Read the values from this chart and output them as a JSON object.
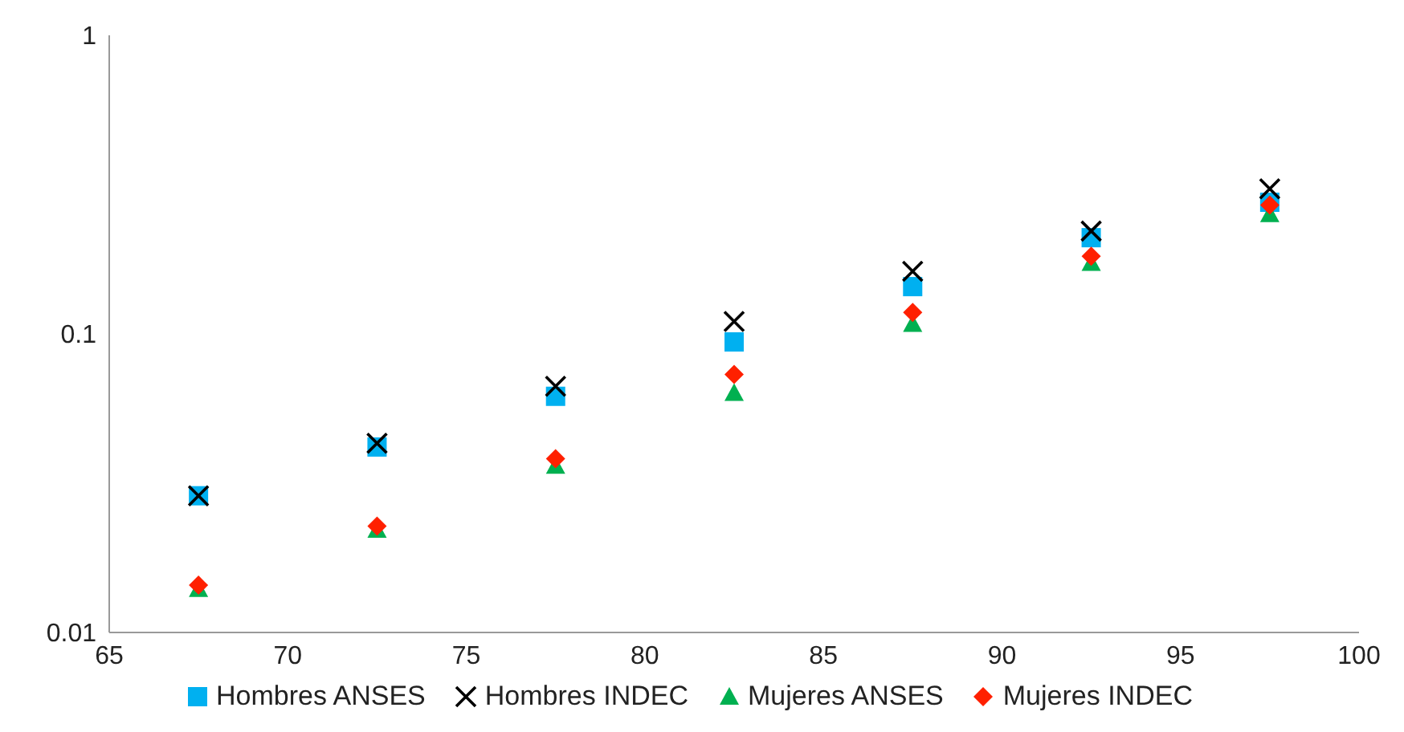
{
  "chart_data": {
    "type": "scatter",
    "x": [
      67.5,
      72.5,
      77.5,
      82.5,
      87.5,
      92.5,
      97.5
    ],
    "series": [
      {
        "name": "Hombres ANSES",
        "color": "#00b0f0",
        "marker": "square",
        "values": [
          0.0287,
          0.0418,
          0.0618,
          0.094,
          0.144,
          0.21,
          0.276
        ]
      },
      {
        "name": "Hombres INDEC",
        "color": "#000000",
        "marker": "cross",
        "values": [
          0.0287,
          0.043,
          0.0668,
          0.11,
          0.162,
          0.221,
          0.306
        ]
      },
      {
        "name": "Mujeres ANSES",
        "color": "#00b050",
        "marker": "triangle",
        "values": [
          0.014,
          0.0221,
          0.0362,
          0.0634,
          0.108,
          0.173,
          0.252
        ]
      },
      {
        "name": "Mujeres INDEC",
        "color": "#ff2000",
        "marker": "diamond",
        "values": [
          0.0144,
          0.0227,
          0.0382,
          0.0731,
          0.118,
          0.182,
          0.27
        ]
      }
    ],
    "xlim": [
      65,
      100
    ],
    "xticks": [
      65,
      70,
      75,
      80,
      85,
      90,
      95,
      100
    ],
    "ylim": [
      0.01,
      1
    ],
    "yticks": [
      0.01,
      0.1,
      1
    ],
    "log": "y",
    "grid": false,
    "legend": "bottom"
  }
}
